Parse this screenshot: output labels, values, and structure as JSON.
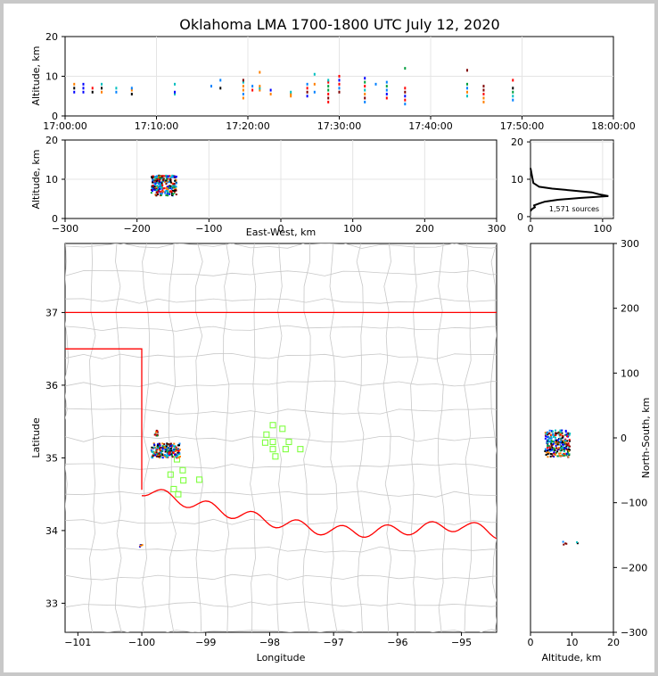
{
  "chart_data": [
    {
      "id": "time-panel",
      "type": "scatter",
      "title": "Oklahoma LMA 1700-1800 UTC July 12, 2020",
      "ylabel": "Altitude, km",
      "xlabel": "",
      "ylim": [
        0,
        20
      ],
      "xlim": [
        0,
        60
      ],
      "y_ticks": [
        "0",
        "10",
        "20"
      ],
      "x_ticks": [
        "17:00:00",
        "17:10:00",
        "17:20:00",
        "17:30:00",
        "17:40:00",
        "17:50:00",
        "18:00:00"
      ],
      "grid": true,
      "source_columns": [
        {
          "t": 1.0,
          "alts": [
            6,
            7,
            8
          ]
        },
        {
          "t": 2.0,
          "alts": [
            6,
            7,
            8
          ]
        },
        {
          "t": 3.0,
          "alts": [
            6,
            7
          ]
        },
        {
          "t": 4.0,
          "alts": [
            6,
            7,
            8
          ]
        },
        {
          "t": 5.6,
          "alts": [
            6,
            7
          ]
        },
        {
          "t": 7.3,
          "alts": [
            5.5,
            6.5,
            7
          ]
        },
        {
          "t": 12.0,
          "alts": [
            5.5,
            6,
            8
          ]
        },
        {
          "t": 16.0,
          "alts": [
            7.5
          ]
        },
        {
          "t": 17.0,
          "alts": [
            7,
            9
          ]
        },
        {
          "t": 19.5,
          "alts": [
            4.5,
            5.5,
            6.5,
            7.5,
            8.5,
            9
          ]
        },
        {
          "t": 20.5,
          "alts": [
            6.5,
            7.5
          ]
        },
        {
          "t": 21.3,
          "alts": [
            6.5,
            7,
            7.5,
            11
          ]
        },
        {
          "t": 22.5,
          "alts": [
            5.5,
            6.5
          ]
        },
        {
          "t": 24.7,
          "alts": [
            5,
            5.5,
            6
          ]
        },
        {
          "t": 26.5,
          "alts": [
            5,
            6,
            7,
            8
          ]
        },
        {
          "t": 27.3,
          "alts": [
            6,
            8,
            10.5
          ]
        },
        {
          "t": 28.8,
          "alts": [
            3.5,
            4.5,
            5.5,
            6.5,
            7.5,
            8.5,
            9
          ]
        },
        {
          "t": 30.0,
          "alts": [
            6,
            7,
            8,
            9,
            10
          ]
        },
        {
          "t": 32.8,
          "alts": [
            3.5,
            4.5,
            5.5,
            6.5,
            7.5,
            8.5,
            9.5
          ]
        },
        {
          "t": 34.0,
          "alts": [
            8
          ]
        },
        {
          "t": 35.2,
          "alts": [
            4.5,
            5.5,
            6.5,
            7.5,
            8.5
          ]
        },
        {
          "t": 37.2,
          "alts": [
            3,
            4,
            5,
            6,
            7,
            12
          ]
        },
        {
          "t": 44.0,
          "alts": [
            5,
            6,
            7,
            8,
            11.5
          ]
        },
        {
          "t": 45.8,
          "alts": [
            3.5,
            4.5,
            5.5,
            6.5,
            7.5
          ]
        },
        {
          "t": 49.0,
          "alts": [
            4,
            5,
            6,
            7,
            9
          ]
        }
      ]
    },
    {
      "id": "east-west-panel",
      "type": "scatter",
      "xlabel": "East-West, km",
      "ylabel": "Altitude, km",
      "xlim": [
        -300,
        300
      ],
      "ylim": [
        0,
        20
      ],
      "x_ticks": [
        "−300",
        "−200",
        "−100",
        "0",
        "100",
        "200",
        "300"
      ],
      "y_ticks": [
        "0",
        "10",
        "20"
      ],
      "grid": true,
      "clusters": [
        {
          "x_min": -180,
          "x_max": -145,
          "y_min": 3,
          "y_max": 11,
          "count": 260
        }
      ]
    },
    {
      "id": "histogram-panel",
      "type": "line",
      "label": "1,571 sources",
      "x_ticks": [
        "0",
        "100"
      ],
      "y_ticks": [
        "0",
        "10",
        "20"
      ],
      "xlim": [
        0,
        115
      ],
      "ylim": [
        -0.5,
        20.5
      ],
      "profile": [
        {
          "alt": 1.5,
          "count": 0
        },
        {
          "alt": 2.0,
          "count": 2
        },
        {
          "alt": 2.5,
          "count": 6
        },
        {
          "alt": 3.0,
          "count": 5
        },
        {
          "alt": 3.5,
          "count": 12
        },
        {
          "alt": 4.0,
          "count": 20
        },
        {
          "alt": 4.5,
          "count": 38
        },
        {
          "alt": 5.0,
          "count": 68
        },
        {
          "alt": 5.5,
          "count": 108
        },
        {
          "alt": 6.0,
          "count": 95
        },
        {
          "alt": 6.5,
          "count": 85
        },
        {
          "alt": 7.0,
          "count": 58
        },
        {
          "alt": 7.5,
          "count": 30
        },
        {
          "alt": 8.0,
          "count": 12
        },
        {
          "alt": 8.5,
          "count": 8
        },
        {
          "alt": 9.0,
          "count": 4
        },
        {
          "alt": 10.0,
          "count": 3
        },
        {
          "alt": 11.0,
          "count": 2
        },
        {
          "alt": 12.0,
          "count": 1
        },
        {
          "alt": 13.0,
          "count": 0
        }
      ]
    },
    {
      "id": "map-panel",
      "type": "scatter",
      "xlabel": "Longitude",
      "ylabel": "Latitude",
      "xlim": [
        -101.2,
        -94.45
      ],
      "ylim": [
        32.6,
        37.95
      ],
      "x_ticks": [
        "−101",
        "−100",
        "−99",
        "−98",
        "−97",
        "−96",
        "−95"
      ],
      "y_ticks": [
        "33",
        "34",
        "35",
        "36",
        "37"
      ],
      "station_color": "#7fff3f",
      "border_color": "#ff0000",
      "county_color": "#c8c8c8",
      "stations": [
        {
          "lon": -97.95,
          "lat": 35.45
        },
        {
          "lon": -97.8,
          "lat": 35.4
        },
        {
          "lon": -98.05,
          "lat": 35.32
        },
        {
          "lon": -97.95,
          "lat": 35.22
        },
        {
          "lon": -97.7,
          "lat": 35.22
        },
        {
          "lon": -98.07,
          "lat": 35.21
        },
        {
          "lon": -97.75,
          "lat": 35.12
        },
        {
          "lon": -97.52,
          "lat": 35.12
        },
        {
          "lon": -97.95,
          "lat": 35.12
        },
        {
          "lon": -97.91,
          "lat": 35.02
        },
        {
          "lon": -99.45,
          "lat": 34.98
        },
        {
          "lon": -99.36,
          "lat": 34.83
        },
        {
          "lon": -99.55,
          "lat": 34.77
        },
        {
          "lon": -99.1,
          "lat": 34.7
        },
        {
          "lon": -99.35,
          "lat": 34.69
        },
        {
          "lon": -99.5,
          "lat": 34.57
        },
        {
          "lon": -99.43,
          "lat": 34.5
        }
      ],
      "clusters": [
        {
          "lon_min": -99.85,
          "lon_max": -99.4,
          "lat_min": 35.0,
          "lat_max": 35.2,
          "count": 200
        },
        {
          "lon_min": -99.8,
          "lon_max": -99.75,
          "lat_min": 35.3,
          "lat_max": 35.38,
          "count": 14
        },
        {
          "lon_min": -100.05,
          "lon_max": -99.98,
          "lat_min": 33.76,
          "lat_max": 33.83,
          "count": 6
        }
      ]
    },
    {
      "id": "north-south-panel",
      "type": "scatter",
      "xlabel": "Altitude, km",
      "ylabel": "North-South, km",
      "xlim": [
        0,
        20
      ],
      "ylim": [
        -300,
        300
      ],
      "x_ticks": [
        "0",
        "10",
        "20"
      ],
      "y_ticks": [
        "300",
        "200",
        "100",
        "0",
        "−100",
        "−200",
        "−300"
      ],
      "clusters": [
        {
          "x_min": 3.5,
          "x_max": 9.5,
          "y_min": -30,
          "y_max": 12,
          "count": 260
        },
        {
          "x_min": 5.5,
          "x_max": 11.5,
          "y_min": -165,
          "y_max": -158,
          "count": 6
        }
      ]
    }
  ]
}
